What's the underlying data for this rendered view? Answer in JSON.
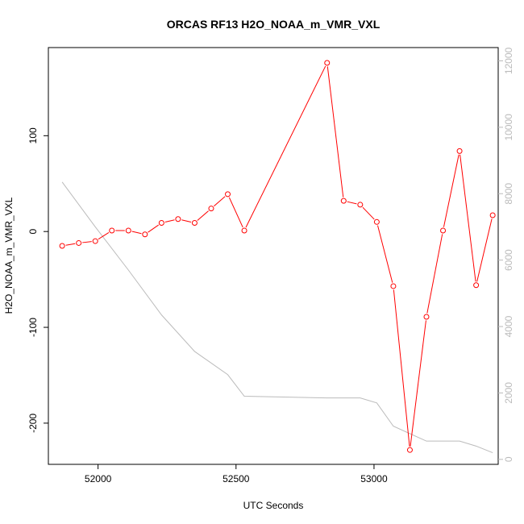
{
  "chart_data": {
    "type": "line",
    "title": "ORCAS RF13 H2O_NOAA_m_VMR_VXL",
    "xlabel": "UTC Seconds",
    "ylabel": "H2O_NOAA_m_VMR_VXL",
    "xlim": [
      51820,
      53450
    ],
    "ylim": [
      -243,
      192
    ],
    "y2lim": [
      -150,
      12400
    ],
    "x_ticks": [
      52000,
      52500,
      53000
    ],
    "y_ticks": [
      -200,
      -100,
      0,
      100
    ],
    "y2_ticks": [
      0,
      2000,
      4000,
      6000,
      8000,
      10000,
      12000
    ],
    "grid": false,
    "series": [
      {
        "axis": "left",
        "color": "#ff0000",
        "marker": "open-circle",
        "x": [
          51870,
          51930,
          51990,
          52050,
          52110,
          52170,
          52230,
          52290,
          52350,
          52410,
          52470,
          52530,
          52830,
          52890,
          52950,
          53010,
          53070,
          53130,
          53190,
          53250,
          53310,
          53370,
          53430
        ],
        "y": [
          -15,
          -12,
          -10,
          1,
          1,
          -3,
          9,
          13,
          9,
          24,
          39,
          1,
          176,
          32,
          28,
          10,
          -57,
          -228,
          -89,
          1,
          84,
          -56,
          17
        ]
      },
      {
        "axis": "right",
        "color": "#bbbbbb",
        "marker": "none",
        "x": [
          51870,
          51990,
          52110,
          52230,
          52350,
          52470,
          52530,
          52830,
          52950,
          53010,
          53070,
          53190,
          53310,
          53370,
          53430
        ],
        "y": [
          8350,
          7000,
          5700,
          4350,
          3250,
          2550,
          1900,
          1850,
          1850,
          1700,
          1000,
          550,
          550,
          400,
          200
        ]
      }
    ]
  }
}
